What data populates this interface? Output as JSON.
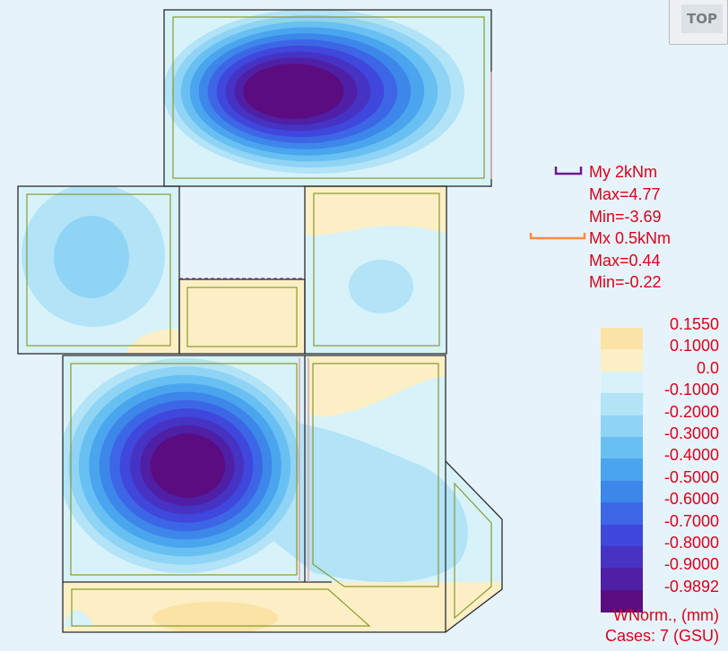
{
  "view_cube": {
    "label": "TOP"
  },
  "moment_info": [
    {
      "line": "My  2kNm",
      "color": "#6a1a8a"
    },
    {
      "line": "Max=4.77"
    },
    {
      "line": "Min=-3.69"
    },
    {
      "line": "Mx  0.5kNm",
      "color": "#ff8a3c"
    },
    {
      "line": "Max=0.44"
    },
    {
      "line": "Min=-0.22"
    }
  ],
  "legend": {
    "levels": [
      {
        "label": "0.1550",
        "color": "#fbe3a6"
      },
      {
        "label": "0.1000",
        "color": "#fcefc6"
      },
      {
        "label": "0.0",
        "color": "#d8f2fa"
      },
      {
        "label": "-0.1000",
        "color": "#b2e3f7"
      },
      {
        "label": "-0.2000",
        "color": "#8fd3f5"
      },
      {
        "label": "-0.3000",
        "color": "#68c0f2"
      },
      {
        "label": "-0.4000",
        "color": "#4aa5ee"
      },
      {
        "label": "-0.5000",
        "color": "#3d86ea"
      },
      {
        "label": "-0.6000",
        "color": "#3d66e6"
      },
      {
        "label": "-0.7000",
        "color": "#3f47dd"
      },
      {
        "label": "-0.8000",
        "color": "#4633c4"
      },
      {
        "label": "-0.9000",
        "color": "#4f1fa5"
      },
      {
        "label": "-0.9892",
        "color": "#5a0c80"
      }
    ],
    "quantity": "WNorm., (mm)",
    "cases": "Cases: 7 (GSU)"
  }
}
